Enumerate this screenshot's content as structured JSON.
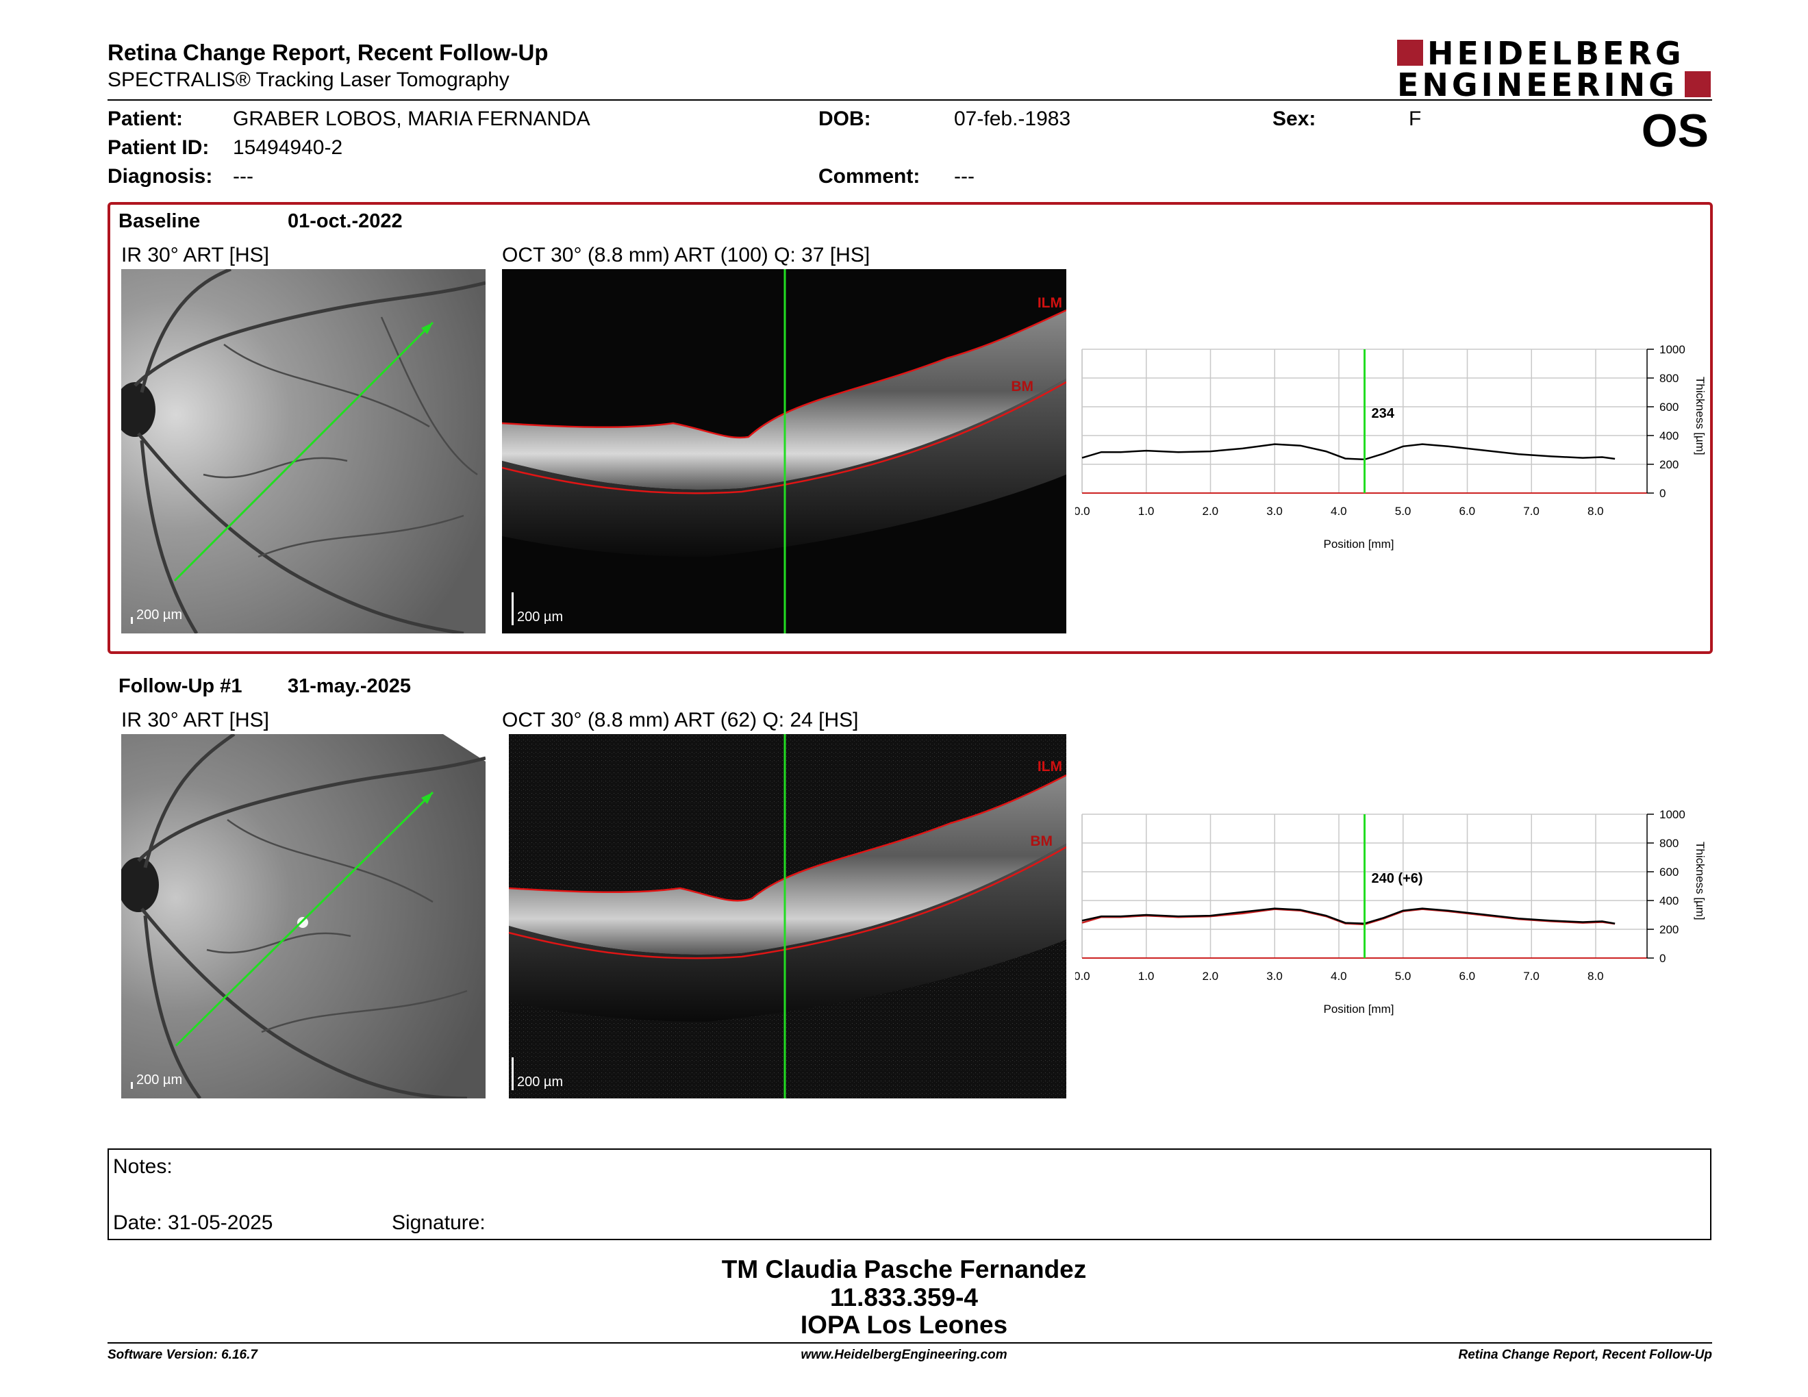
{
  "header": {
    "title": "Retina Change Report, Recent Follow-Up",
    "subtitle": "SPECTRALIS® Tracking Laser Tomography",
    "logo_line1": "HEIDELBERG",
    "logo_line2": "ENGINEERING",
    "brand_color": "#a51d2d"
  },
  "patient": {
    "patient_label": "Patient:",
    "patient_name": "GRABER LOBOS, MARIA FERNANDA",
    "id_label": "Patient ID:",
    "id_value": "15494940-2",
    "diagnosis_label": "Diagnosis:",
    "diagnosis_value": "---",
    "dob_label": "DOB:",
    "dob_value": "07-feb.-1983",
    "comment_label": "Comment:",
    "comment_value": "---",
    "sex_label": "Sex:",
    "sex_value": "F",
    "eye": "OS"
  },
  "exams": [
    {
      "label": "Baseline",
      "date": "01-oct.-2022",
      "ir_label": "IR 30° ART [HS]",
      "oct_label": "OCT 30° (8.8 mm) ART (100) Q: 37 [HS]",
      "scale": "200 µm",
      "ilm": "ILM",
      "bm": "BM",
      "marker_value": "234"
    },
    {
      "label": "Follow-Up #1",
      "date": "31-may.-2025",
      "ir_label": "IR 30° ART [HS]",
      "oct_label": "OCT 30° (8.8 mm) ART (62) Q: 24 [HS]",
      "scale": "200 µm",
      "ilm": "ILM",
      "bm": "BM",
      "marker_value": "240 (+6)"
    }
  ],
  "chart_data": [
    {
      "type": "line",
      "xlabel": "Position [mm]",
      "ylabel": "Thickness [µm]",
      "xlim": [
        0,
        8.8
      ],
      "ylim": [
        0,
        1000
      ],
      "x_ticks": [
        "0.0",
        "1.0",
        "2.0",
        "3.0",
        "4.0",
        "5.0",
        "6.0",
        "7.0",
        "8.0"
      ],
      "y_ticks": [
        "0",
        "200",
        "400",
        "600",
        "800",
        "1000"
      ],
      "grid": true,
      "marker_x": 4.4,
      "marker_label": "234",
      "series": [
        {
          "x": [
            0,
            0.3,
            0.6,
            1.0,
            1.5,
            2.0,
            2.5,
            3.0,
            3.4,
            3.8,
            4.1,
            4.4,
            4.7,
            5.0,
            5.3,
            5.7,
            6.2,
            6.8,
            7.3,
            7.8,
            8.1,
            8.3
          ],
          "y": [
            245,
            285,
            285,
            295,
            285,
            290,
            310,
            340,
            330,
            290,
            240,
            234,
            275,
            325,
            340,
            325,
            300,
            270,
            255,
            245,
            250,
            238
          ]
        }
      ],
      "line_colors": [
        "#000000",
        "#cc2222"
      ]
    },
    {
      "type": "line",
      "xlabel": "Position [mm]",
      "ylabel": "Thickness [µm]",
      "xlim": [
        0,
        8.8
      ],
      "ylim": [
        0,
        1000
      ],
      "x_ticks": [
        "0.0",
        "1.0",
        "2.0",
        "3.0",
        "4.0",
        "5.0",
        "6.0",
        "7.0",
        "8.0"
      ],
      "y_ticks": [
        "0",
        "200",
        "400",
        "600",
        "800",
        "1000"
      ],
      "grid": true,
      "marker_x": 4.4,
      "marker_label": "240 (+6)",
      "series": [
        {
          "x": [
            0,
            0.3,
            0.6,
            1.0,
            1.5,
            2.0,
            2.5,
            3.0,
            3.4,
            3.8,
            4.1,
            4.4,
            4.7,
            5.0,
            5.3,
            5.7,
            6.2,
            6.8,
            7.3,
            7.8,
            8.1,
            8.3
          ],
          "y": [
            260,
            290,
            290,
            300,
            290,
            295,
            320,
            345,
            335,
            295,
            245,
            240,
            280,
            330,
            345,
            330,
            305,
            275,
            260,
            250,
            255,
            240
          ]
        },
        {
          "x": [
            0,
            0.3,
            0.6,
            1.0,
            1.5,
            2.0,
            2.5,
            3.0,
            3.4,
            3.8,
            4.1,
            4.4,
            4.7,
            5.0,
            5.3,
            5.7,
            6.2,
            6.8,
            7.3,
            7.8,
            8.1,
            8.3
          ],
          "y": [
            245,
            285,
            285,
            295,
            285,
            290,
            310,
            340,
            330,
            290,
            240,
            234,
            275,
            325,
            340,
            325,
            300,
            270,
            255,
            245,
            250,
            238
          ]
        }
      ],
      "line_colors": [
        "#000000",
        "#cc2222"
      ]
    }
  ],
  "notes": {
    "notes_label": "Notes:",
    "date_label": "Date: 31-05-2025",
    "signature_label": "Signature:"
  },
  "signoff": {
    "line1": "TM Claudia Pasche Fernandez",
    "line2": "11.833.359-4",
    "line3": "IOPA Los Leones"
  },
  "footer": {
    "left": "Software Version: 6.16.7",
    "center": "www.HeidelbergEngineering.com",
    "right": "Retina Change Report, Recent Follow-Up"
  }
}
